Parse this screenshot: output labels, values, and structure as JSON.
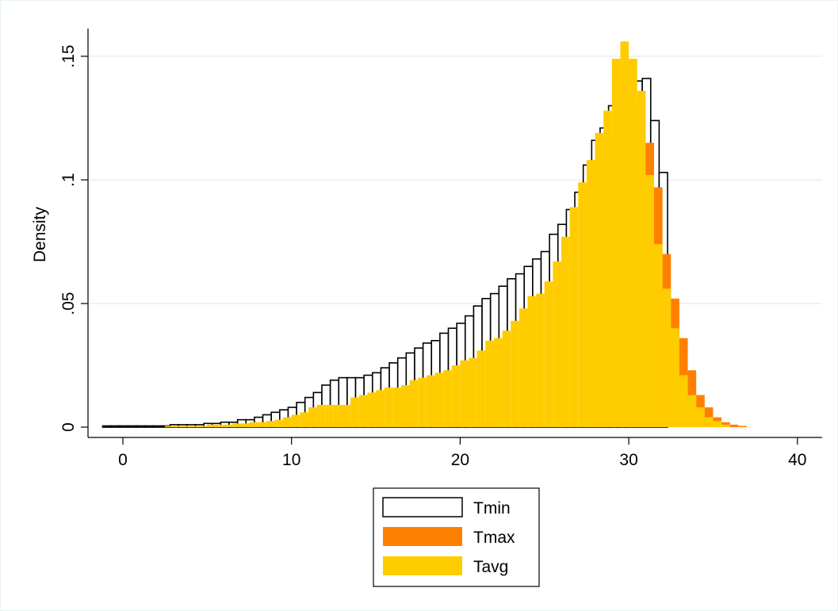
{
  "chart_data": {
    "type": "bar",
    "subtype": "overlaid-histogram",
    "ylabel": "Density",
    "xlabel": "",
    "xlim": [
      -1.2,
      41.0
    ],
    "ylim": [
      0,
      0.16
    ],
    "x_ticks": [
      0,
      10,
      20,
      30,
      40
    ],
    "x_tick_labels": [
      "0",
      "10",
      "20",
      "30",
      "40"
    ],
    "y_ticks": [
      0,
      0.05,
      0.1,
      0.15
    ],
    "y_tick_labels": [
      "0",
      ".05",
      ".1",
      ".15"
    ],
    "grid": true,
    "legend_position": "bottom",
    "bin_width": 0.5,
    "series": [
      {
        "name": "Tmin",
        "color": "#ffffff",
        "outline": "#000000",
        "bins_start": -1.2,
        "values": [
          0.0005,
          0.0005,
          0.0005,
          0.0005,
          0.0005,
          0.0005,
          0.0005,
          0.0005,
          0.001,
          0.001,
          0.001,
          0.001,
          0.0015,
          0.0015,
          0.002,
          0.002,
          0.003,
          0.003,
          0.004,
          0.005,
          0.006,
          0.007,
          0.008,
          0.01,
          0.012,
          0.014,
          0.017,
          0.019,
          0.02,
          0.02,
          0.02,
          0.021,
          0.022,
          0.024,
          0.026,
          0.028,
          0.03,
          0.032,
          0.034,
          0.035,
          0.038,
          0.04,
          0.042,
          0.045,
          0.049,
          0.052,
          0.054,
          0.057,
          0.06,
          0.062,
          0.065,
          0.068,
          0.071,
          0.078,
          0.082,
          0.088,
          0.095,
          0.106,
          0.116,
          0.121,
          0.13,
          0.136,
          0.147,
          0.14,
          0.141,
          0.124,
          0.103
        ]
      },
      {
        "name": "Tmax",
        "color": "#ff8000",
        "bins_start": 27.5,
        "values": [
          0.09,
          0.098,
          0.118,
          0.108,
          0.125,
          0.129,
          0.125,
          0.115,
          0.097,
          0.07,
          0.052,
          0.036,
          0.023,
          0.013,
          0.008,
          0.004,
          0.002,
          0.001,
          0.0005
        ]
      },
      {
        "name": "Tavg",
        "color": "#ffcc00",
        "bins_start": 2.5,
        "values": [
          0.0005,
          0.0005,
          0.0005,
          0.0005,
          0.0005,
          0.001,
          0.001,
          0.001,
          0.0015,
          0.0015,
          0.002,
          0.002,
          0.0025,
          0.003,
          0.004,
          0.005,
          0.006,
          0.008,
          0.009,
          0.009,
          0.009,
          0.009,
          0.012,
          0.013,
          0.014,
          0.015,
          0.016,
          0.016,
          0.017,
          0.019,
          0.02,
          0.021,
          0.022,
          0.023,
          0.025,
          0.027,
          0.028,
          0.031,
          0.035,
          0.036,
          0.039,
          0.043,
          0.048,
          0.053,
          0.054,
          0.059,
          0.067,
          0.077,
          0.089,
          0.099,
          0.108,
          0.119,
          0.128,
          0.149,
          0.156,
          0.149,
          0.136,
          0.102,
          0.074,
          0.056,
          0.04,
          0.021,
          0.013,
          0.008,
          0.004,
          0.0025,
          0.001
        ]
      }
    ]
  }
}
